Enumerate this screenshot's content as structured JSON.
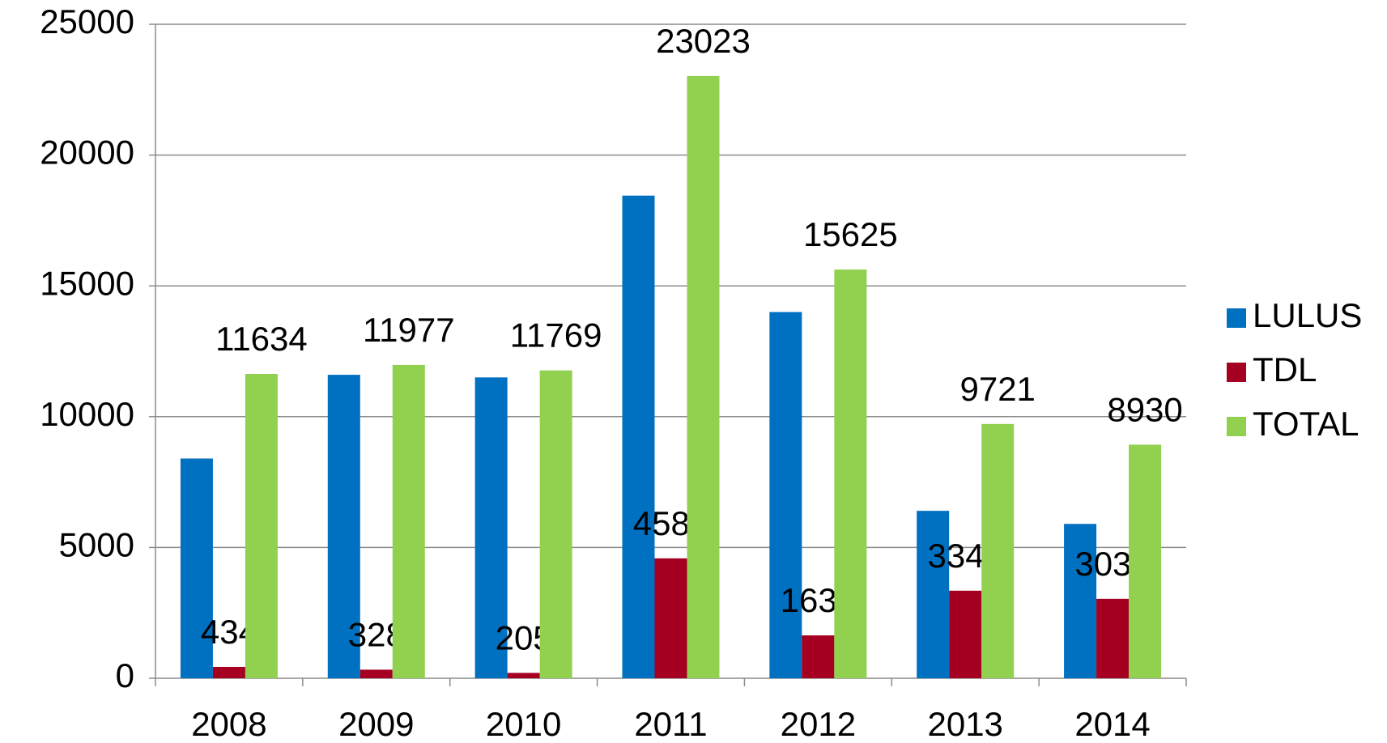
{
  "chart_data": {
    "type": "bar",
    "categories": [
      "2008",
      "2009",
      "2010",
      "2011",
      "2012",
      "2013",
      "2014"
    ],
    "series": [
      {
        "name": "LULUS",
        "color": "#0070c0",
        "values": [
          8400,
          11600,
          11500,
          18450,
          14000,
          6400,
          5900
        ],
        "data_labels": false
      },
      {
        "name": "TDL",
        "color": "#a50021",
        "values": [
          434,
          328,
          205,
          4583,
          1639,
          3347,
          3037
        ],
        "data_labels": true
      },
      {
        "name": "TOTAL",
        "color": "#92d050",
        "values": [
          11634,
          11977,
          11769,
          23023,
          15625,
          9721,
          8930
        ],
        "data_labels": true
      }
    ],
    "ylim": [
      0,
      25000
    ],
    "yticks": [
      0,
      5000,
      10000,
      15000,
      20000,
      25000
    ],
    "grid": true,
    "legend": "right"
  }
}
